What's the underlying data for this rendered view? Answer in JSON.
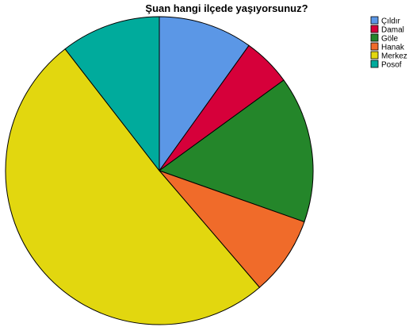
{
  "chart_data": {
    "type": "pie",
    "title": "Şuan hangi ilçede yaşıyorsunuz?",
    "start_angle_deg": 0,
    "direction": "clockwise",
    "legend_position": "top-right",
    "slices": [
      {
        "label": "Çıldır",
        "value": 9.9,
        "color": "#5b97e6"
      },
      {
        "label": "Damal",
        "value": 5.1,
        "color": "#d6003a"
      },
      {
        "label": "Göle",
        "value": 15.4,
        "color": "#24862a"
      },
      {
        "label": "Hanak",
        "value": 8.3,
        "color": "#f06b2a"
      },
      {
        "label": "Merkez",
        "value": 50.8,
        "color": "#e2d70f"
      },
      {
        "label": "Posof",
        "value": 10.5,
        "color": "#00ab9c"
      }
    ]
  }
}
